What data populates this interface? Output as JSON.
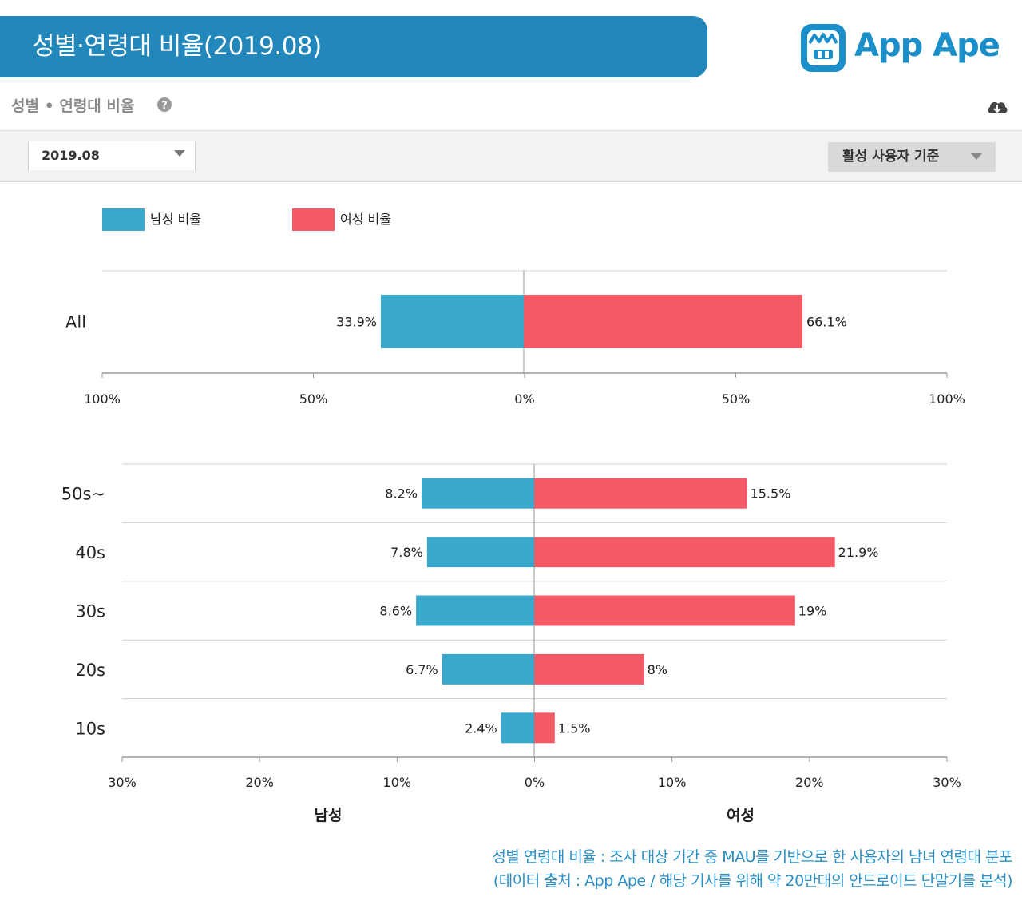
{
  "header": {
    "title": "성별·연령대 비율(2019.08)"
  },
  "logo": {
    "text": "App Ape"
  },
  "section": {
    "title": "성별 • 연령대 비율"
  },
  "filters": {
    "date": "2019.08",
    "basis": "활성 사용자 기준"
  },
  "colors": {
    "male": "#38a9cc",
    "female": "#f45a66",
    "banner": "#2287bb",
    "footnote": "#2a8fc4"
  },
  "chart_data": [
    {
      "type": "bar",
      "orientation": "horizontal-diverging",
      "categories": [
        "All"
      ],
      "series": [
        {
          "name": "남성 비율",
          "values": [
            33.9
          ],
          "labels": [
            "33.9%"
          ]
        },
        {
          "name": "여성 비율",
          "values": [
            66.1
          ],
          "labels": [
            "66.1%"
          ]
        }
      ],
      "xlim": [
        -100,
        100
      ],
      "xticks": [
        "100%",
        "50%",
        "0%",
        "50%",
        "100%"
      ],
      "legend": "top-left",
      "grid": false
    },
    {
      "type": "bar",
      "orientation": "horizontal-diverging",
      "categories": [
        "50s~",
        "40s",
        "30s",
        "20s",
        "10s"
      ],
      "series": [
        {
          "name": "남성 비율",
          "values": [
            8.2,
            7.8,
            8.6,
            6.7,
            2.4
          ],
          "labels": [
            "8.2%",
            "7.8%",
            "8.6%",
            "6.7%",
            "2.4%"
          ]
        },
        {
          "name": "여성 비율",
          "values": [
            15.5,
            21.9,
            19,
            8,
            1.5
          ],
          "labels": [
            "15.5%",
            "21.9%",
            "19%",
            "8%",
            "1.5%"
          ]
        }
      ],
      "xlim": [
        -30,
        30
      ],
      "xticks": [
        "30%",
        "20%",
        "10%",
        "0%",
        "10%",
        "20%",
        "30%"
      ],
      "xlabel_left": "남성",
      "xlabel_right": "여성",
      "grid": true
    }
  ],
  "footnote": {
    "line1": "성별 연령대 비율 : 조사 대상 기간 중 MAU를 기반으로 한 사용자의 남녀 연령대 분포",
    "line2": "(데이터 출처 : App Ape / 해당 기사를 위해 약 20만대의 안드로이드 단말기를 분석)"
  }
}
